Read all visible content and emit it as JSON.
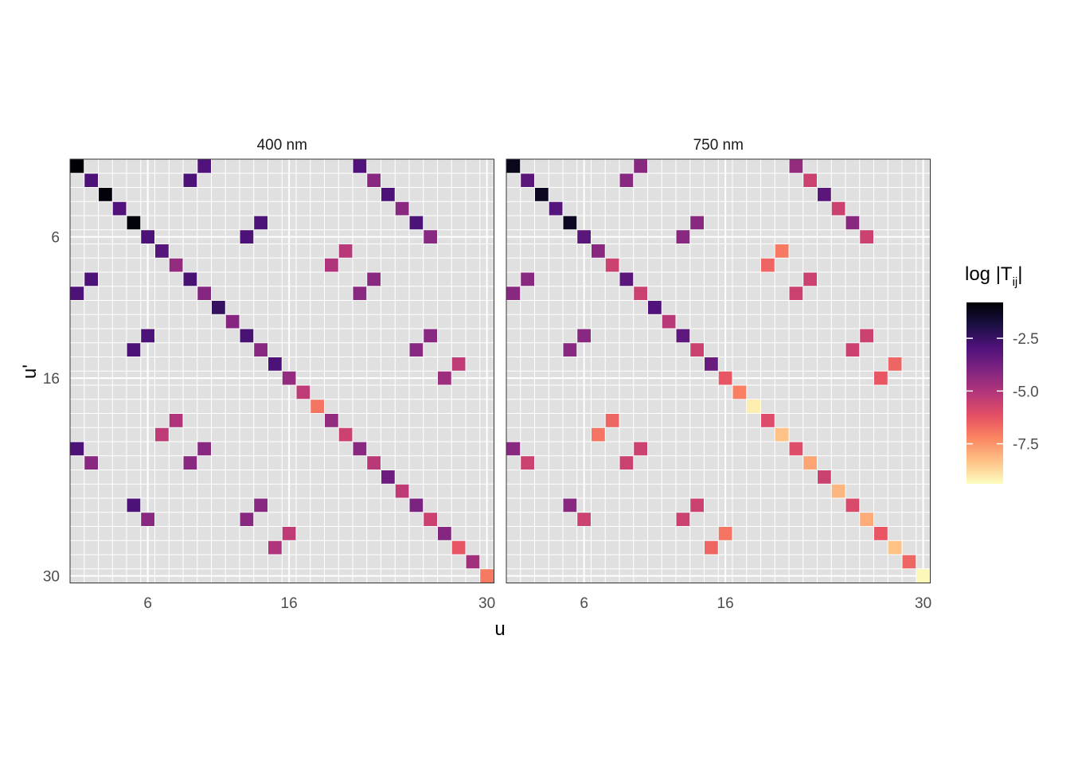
{
  "chart_data": {
    "type": "heatmap",
    "facets": [
      {
        "title": "400 nm",
        "cells": [
          [
            1,
            1,
            -0.8
          ],
          [
            2,
            2,
            -2.9
          ],
          [
            3,
            3,
            -0.9
          ],
          [
            4,
            4,
            -3.0
          ],
          [
            5,
            5,
            -0.9
          ],
          [
            6,
            6,
            -2.9
          ],
          [
            7,
            7,
            -3.1
          ],
          [
            8,
            8,
            -4.4
          ],
          [
            9,
            9,
            -2.8
          ],
          [
            10,
            10,
            -4.1
          ],
          [
            11,
            11,
            -2.4
          ],
          [
            12,
            12,
            -4.1
          ],
          [
            13,
            13,
            -2.8
          ],
          [
            14,
            14,
            -4.2
          ],
          [
            15,
            15,
            -2.9
          ],
          [
            16,
            16,
            -4.4
          ],
          [
            17,
            17,
            -5.3
          ],
          [
            18,
            18,
            -6.9
          ],
          [
            19,
            19,
            -4.4
          ],
          [
            20,
            20,
            -5.6
          ],
          [
            21,
            21,
            -4.2
          ],
          [
            22,
            22,
            -5.2
          ],
          [
            23,
            23,
            -3.6
          ],
          [
            24,
            24,
            -5.3
          ],
          [
            25,
            25,
            -3.9
          ],
          [
            26,
            26,
            -5.6
          ],
          [
            27,
            27,
            -4.1
          ],
          [
            28,
            28,
            -6.3
          ],
          [
            29,
            29,
            -4.7
          ],
          [
            30,
            30,
            -7.0
          ],
          [
            10,
            1,
            -3.0
          ],
          [
            21,
            1,
            -3.0
          ],
          [
            9,
            2,
            -2.9
          ],
          [
            22,
            2,
            -4.2
          ],
          [
            23,
            3,
            -2.9
          ],
          [
            24,
            4,
            -4.2
          ],
          [
            14,
            5,
            -2.9
          ],
          [
            25,
            5,
            -2.9
          ],
          [
            13,
            6,
            -2.9
          ],
          [
            26,
            6,
            -4.2
          ],
          [
            20,
            7,
            -5.2
          ],
          [
            19,
            8,
            -5.0
          ],
          [
            2,
            9,
            -2.9
          ],
          [
            22,
            9,
            -4.2
          ],
          [
            1,
            10,
            -2.9
          ],
          [
            21,
            10,
            -4.2
          ],
          [
            6,
            13,
            -2.9
          ],
          [
            26,
            13,
            -4.2
          ],
          [
            5,
            14,
            -2.9
          ],
          [
            25,
            14,
            -4.2
          ],
          [
            28,
            15,
            -5.3
          ],
          [
            27,
            16,
            -4.6
          ],
          [
            8,
            19,
            -5.0
          ],
          [
            7,
            20,
            -5.3
          ],
          [
            1,
            21,
            -2.9
          ],
          [
            10,
            21,
            -4.2
          ],
          [
            2,
            22,
            -4.2
          ],
          [
            9,
            22,
            -4.2
          ],
          [
            5,
            25,
            -2.9
          ],
          [
            14,
            25,
            -4.2
          ],
          [
            6,
            26,
            -4.2
          ],
          [
            13,
            26,
            -4.2
          ],
          [
            16,
            27,
            -5.3
          ],
          [
            15,
            28,
            -5.0
          ]
        ]
      },
      {
        "title": "750 nm",
        "cells": [
          [
            1,
            1,
            -1.2
          ],
          [
            2,
            2,
            -3.2
          ],
          [
            3,
            3,
            -1.3
          ],
          [
            4,
            4,
            -3.1
          ],
          [
            5,
            5,
            -1.3
          ],
          [
            6,
            6,
            -3.2
          ],
          [
            7,
            7,
            -4.2
          ],
          [
            8,
            8,
            -5.6
          ],
          [
            9,
            9,
            -3.2
          ],
          [
            10,
            10,
            -5.6
          ],
          [
            11,
            11,
            -3.0
          ],
          [
            12,
            12,
            -5.2
          ],
          [
            13,
            13,
            -3.3
          ],
          [
            14,
            14,
            -5.6
          ],
          [
            15,
            15,
            -3.5
          ],
          [
            16,
            16,
            -6.3
          ],
          [
            17,
            17,
            -7.1
          ],
          [
            18,
            18,
            -9.1
          ],
          [
            19,
            19,
            -6.0
          ],
          [
            20,
            20,
            -8.3
          ],
          [
            21,
            21,
            -6.0
          ],
          [
            22,
            22,
            -7.8
          ],
          [
            23,
            23,
            -5.6
          ],
          [
            24,
            24,
            -8.1
          ],
          [
            25,
            25,
            -5.9
          ],
          [
            26,
            26,
            -7.9
          ],
          [
            27,
            27,
            -6.3
          ],
          [
            28,
            28,
            -8.3
          ],
          [
            29,
            29,
            -6.6
          ],
          [
            30,
            30,
            -9.3
          ],
          [
            10,
            1,
            -4.2
          ],
          [
            21,
            1,
            -4.4
          ],
          [
            9,
            2,
            -4.2
          ],
          [
            22,
            2,
            -5.6
          ],
          [
            23,
            3,
            -3.2
          ],
          [
            24,
            4,
            -5.6
          ],
          [
            14,
            5,
            -4.2
          ],
          [
            25,
            5,
            -4.2
          ],
          [
            13,
            6,
            -4.2
          ],
          [
            26,
            6,
            -5.6
          ],
          [
            20,
            7,
            -7.0
          ],
          [
            19,
            8,
            -6.6
          ],
          [
            2,
            9,
            -4.2
          ],
          [
            22,
            9,
            -5.6
          ],
          [
            1,
            10,
            -4.2
          ],
          [
            21,
            10,
            -5.6
          ],
          [
            6,
            13,
            -4.2
          ],
          [
            26,
            13,
            -5.6
          ],
          [
            5,
            14,
            -4.2
          ],
          [
            25,
            14,
            -5.6
          ],
          [
            28,
            15,
            -6.6
          ],
          [
            27,
            16,
            -6.3
          ],
          [
            8,
            19,
            -6.6
          ],
          [
            7,
            20,
            -6.9
          ],
          [
            1,
            21,
            -4.2
          ],
          [
            10,
            21,
            -5.6
          ],
          [
            2,
            22,
            -5.6
          ],
          [
            9,
            22,
            -5.6
          ],
          [
            5,
            25,
            -4.2
          ],
          [
            14,
            25,
            -5.6
          ],
          [
            6,
            26,
            -5.6
          ],
          [
            13,
            26,
            -5.6
          ],
          [
            16,
            27,
            -6.9
          ],
          [
            15,
            28,
            -6.6
          ]
        ]
      }
    ],
    "xlabel": "u",
    "ylabel": "u'",
    "xticks": [
      6,
      16,
      30
    ],
    "yticks": [
      6,
      16,
      30
    ],
    "xlim": [
      1,
      30
    ],
    "ylim": [
      1,
      30
    ],
    "y_reversed": true,
    "legend": {
      "title": "log |T",
      "title_sub": "ij",
      "title_end": "|",
      "ticks": [
        -2.5,
        -5.0,
        -7.5
      ],
      "tick_labels": [
        "-2.5",
        "-5.0",
        "-7.5"
      ],
      "range": [
        -9.4,
        -0.8
      ],
      "placement": "right"
    },
    "colors": {
      "panel_background": "#e0e0e0",
      "grid": "#ffffff",
      "scale": [
        "#000004",
        "#1c1044",
        "#4f127b",
        "#812581",
        "#b5367a",
        "#e55064",
        "#fb8761",
        "#fec287",
        "#fcfdbf"
      ]
    }
  }
}
